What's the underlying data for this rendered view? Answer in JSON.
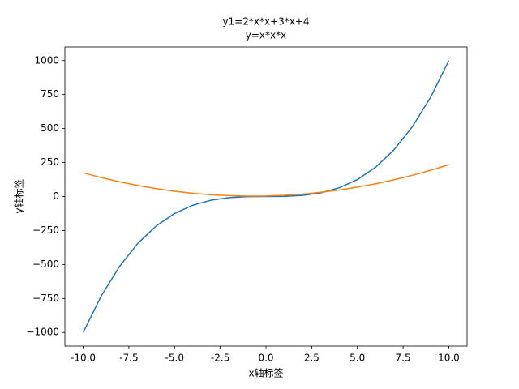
{
  "chart_data": {
    "type": "line",
    "title": "y1=2*x*x+3*x+4",
    "subtitle": "y=x*x*x",
    "x_label": "x轴标签",
    "y_label": "y轴标签",
    "x": [
      -10,
      -9,
      -8,
      -7,
      -6,
      -5,
      -4,
      -3,
      -2,
      -1,
      0,
      1,
      2,
      3,
      4,
      5,
      6,
      7,
      8,
      9,
      10
    ],
    "series": [
      {
        "color": "#1f77b4",
        "values": [
          -1000,
          -729,
          -512,
          -343,
          -216,
          -125,
          -64,
          -27,
          -8,
          -1,
          0,
          1,
          8,
          27,
          64,
          125,
          216,
          343,
          512,
          729,
          1000
        ]
      },
      {
        "color": "#ff7f0e",
        "values": [
          174,
          139,
          108,
          81,
          58,
          39,
          24,
          13,
          6,
          3,
          4,
          9,
          18,
          31,
          48,
          69,
          94,
          123,
          156,
          193,
          234
        ]
      }
    ],
    "xlim": [
      -11,
      11
    ],
    "xticks": [
      {
        "value": -10,
        "label": "-10.0"
      },
      {
        "value": -7.5,
        "label": "-7.5"
      },
      {
        "value": -5,
        "label": "-5.0"
      },
      {
        "value": -2.5,
        "label": "-2.5"
      },
      {
        "value": 0,
        "label": "0.0"
      },
      {
        "value": 2.5,
        "label": "2.5"
      },
      {
        "value": 5,
        "label": "5.0"
      },
      {
        "value": 7.5,
        "label": "7.5"
      },
      {
        "value": 10,
        "label": "10.0"
      }
    ],
    "ylim": [
      -1100,
      1100
    ],
    "yticks": [
      {
        "value": -1000,
        "label": "−1000"
      },
      {
        "value": -750,
        "label": "−750"
      },
      {
        "value": -500,
        "label": "−500"
      },
      {
        "value": -250,
        "label": "−250"
      },
      0,
      250,
      500,
      750,
      1000
    ],
    "grid": false
  }
}
